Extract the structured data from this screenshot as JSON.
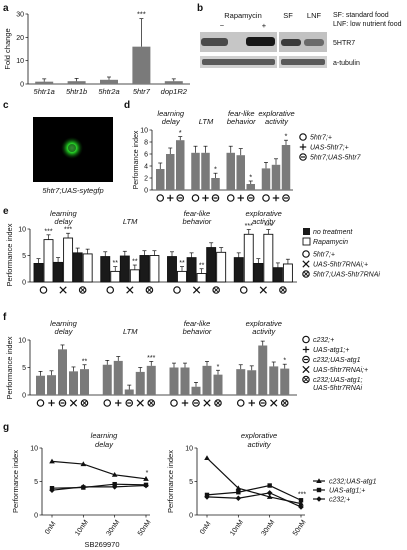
{
  "panels": {
    "a": {
      "letter": "a"
    },
    "b": {
      "letter": "b"
    },
    "c": {
      "letter": "c"
    },
    "d": {
      "letter": "d"
    },
    "e": {
      "letter": "e"
    },
    "f": {
      "letter": "f"
    },
    "g": {
      "letter": "g"
    }
  },
  "blot": {
    "rapamycin": "Rapamycin",
    "minus": "−",
    "plus": "+",
    "sf": "SF",
    "lnf": "LNF",
    "legend_sf": "SF: standard food",
    "legend_lnf": "LNF: low nutrient food",
    "band1": "5HTR7",
    "band2": "a-tubulin"
  },
  "micrograph": {
    "caption": "5htr7;UAS-sytegfp"
  },
  "chart_data": [
    {
      "panel": "a",
      "type": "bar",
      "ylabel": "Fold change",
      "ylim": [
        0,
        30
      ],
      "yticks": [
        0,
        10,
        20,
        30
      ],
      "categories": [
        "5htr1a",
        "5htr1b",
        "5htr2a",
        "5htr7",
        "dop1R2"
      ],
      "values": [
        1.0,
        1.2,
        1.8,
        16.0,
        1.2
      ],
      "errors": [
        1.2,
        1.2,
        1.2,
        12.0,
        1.0
      ],
      "annotations": [
        {
          "category": "5htr7",
          "text": "***"
        }
      ]
    },
    {
      "panel": "d",
      "type": "bar",
      "ylabel": "Performance index",
      "ylim": [
        0,
        10
      ],
      "yticks": [
        0,
        2,
        4,
        6,
        8,
        10
      ],
      "groups": [
        "learning delay",
        "LTM",
        "fear-like behavior",
        "explorative activity"
      ],
      "legend": [
        "5htr7;+",
        "UAS-5htr7;+",
        "5htr7;UAS-5htr7"
      ],
      "values": [
        [
          3.5,
          6.0,
          8.3
        ],
        [
          6.2,
          6.2,
          2.0
        ],
        [
          6.2,
          5.8,
          1.0
        ],
        [
          3.6,
          4.2,
          7.5
        ]
      ],
      "errors": [
        [
          1.0,
          1.0,
          0.6
        ],
        [
          1.1,
          1.1,
          0.8
        ],
        [
          1.1,
          1.1,
          0.5
        ],
        [
          1.0,
          1.0,
          0.8
        ]
      ],
      "annotations": [
        "*",
        "*",
        "*",
        "*"
      ]
    },
    {
      "panel": "e",
      "type": "bar",
      "ylabel": "Performance index",
      "ylim": [
        0,
        10
      ],
      "yticks": [
        0,
        5,
        10
      ],
      "groups": [
        "learning delay",
        "LTM",
        "fear-like behavior",
        "explorative activity"
      ],
      "series": [
        {
          "name": "no treatment"
        },
        {
          "name": "Rapamycin"
        }
      ],
      "genotypes": [
        "5htr7;+",
        "UAS-5htr7RNAi;+",
        "5htr7;UAS-5htr7RNAi"
      ],
      "values": [
        [
          [
            3.5,
            8.0
          ],
          [
            3.7,
            8.3
          ],
          [
            5.5,
            5.3
          ]
        ],
        [
          [
            4.8,
            2.0
          ],
          [
            4.9,
            2.3
          ],
          [
            5.0,
            5.0
          ]
        ],
        [
          [
            4.8,
            2.0
          ],
          [
            4.6,
            1.6
          ],
          [
            6.5,
            5.6
          ]
        ],
        [
          [
            4.6,
            9.0
          ],
          [
            3.5,
            9.0
          ],
          [
            2.7,
            3.4
          ]
        ]
      ],
      "annotations": [
        "***",
        "***",
        "**",
        "**",
        "**",
        "**",
        "***",
        "***"
      ]
    },
    {
      "panel": "f",
      "type": "bar",
      "ylabel": "Performance index",
      "ylim": [
        0,
        10
      ],
      "yticks": [
        0,
        5,
        10
      ],
      "groups": [
        "learning delay",
        "LTM",
        "fear-like behavior",
        "explorative activity"
      ],
      "legend": [
        "c232;+",
        "UAS-atg1;+",
        "c232;UAS-atg1",
        "UAS-5htr7RNAi;+",
        "c232;UAS-atg1; UAS-5htr7RNAi"
      ],
      "values": [
        [
          3.5,
          3.6,
          8.3,
          4.3,
          4.7
        ],
        [
          5.5,
          6.2,
          1.0,
          4.2,
          5.3
        ],
        [
          5.0,
          5.0,
          1.5,
          5.3,
          3.7
        ],
        [
          4.7,
          4.5,
          9.0,
          5.2,
          4.8
        ]
      ],
      "annotations": [
        "**",
        "***",
        "*",
        "*"
      ]
    },
    {
      "panel": "g",
      "type": "line",
      "x": [
        "0nM",
        "10nM",
        "30nM",
        "50nM"
      ],
      "xlabel": "SB269970",
      "ylabel": "Performance index",
      "subplots": [
        {
          "title": "learning delay",
          "ylim": [
            0,
            10
          ],
          "yticks": [
            0,
            5,
            10
          ],
          "series": [
            {
              "name": "c232;UAS-atg1",
              "values": [
                8.0,
                7.6,
                6.0,
                5.4
              ]
            },
            {
              "name": "UAS-atg1;+",
              "values": [
                4.0,
                4.1,
                4.6,
                4.5
              ]
            },
            {
              "name": "c232;+",
              "values": [
                3.7,
                4.2,
                4.2,
                4.4
              ]
            }
          ],
          "annotations": [
            "*"
          ]
        },
        {
          "title": "explorative activity",
          "ylim": [
            0,
            10
          ],
          "yticks": [
            0,
            5,
            10
          ],
          "series": [
            {
              "name": "c232;UAS-atg1",
              "values": [
                8.5,
                4.0,
                2.7,
                1.7
              ]
            },
            {
              "name": "UAS-atg1;+",
              "values": [
                3.0,
                3.4,
                4.4,
                2.2
              ]
            },
            {
              "name": "c232;+",
              "values": [
                2.7,
                2.5,
                3.3,
                1.2
              ]
            }
          ],
          "annotations": [
            "***"
          ]
        }
      ]
    }
  ]
}
